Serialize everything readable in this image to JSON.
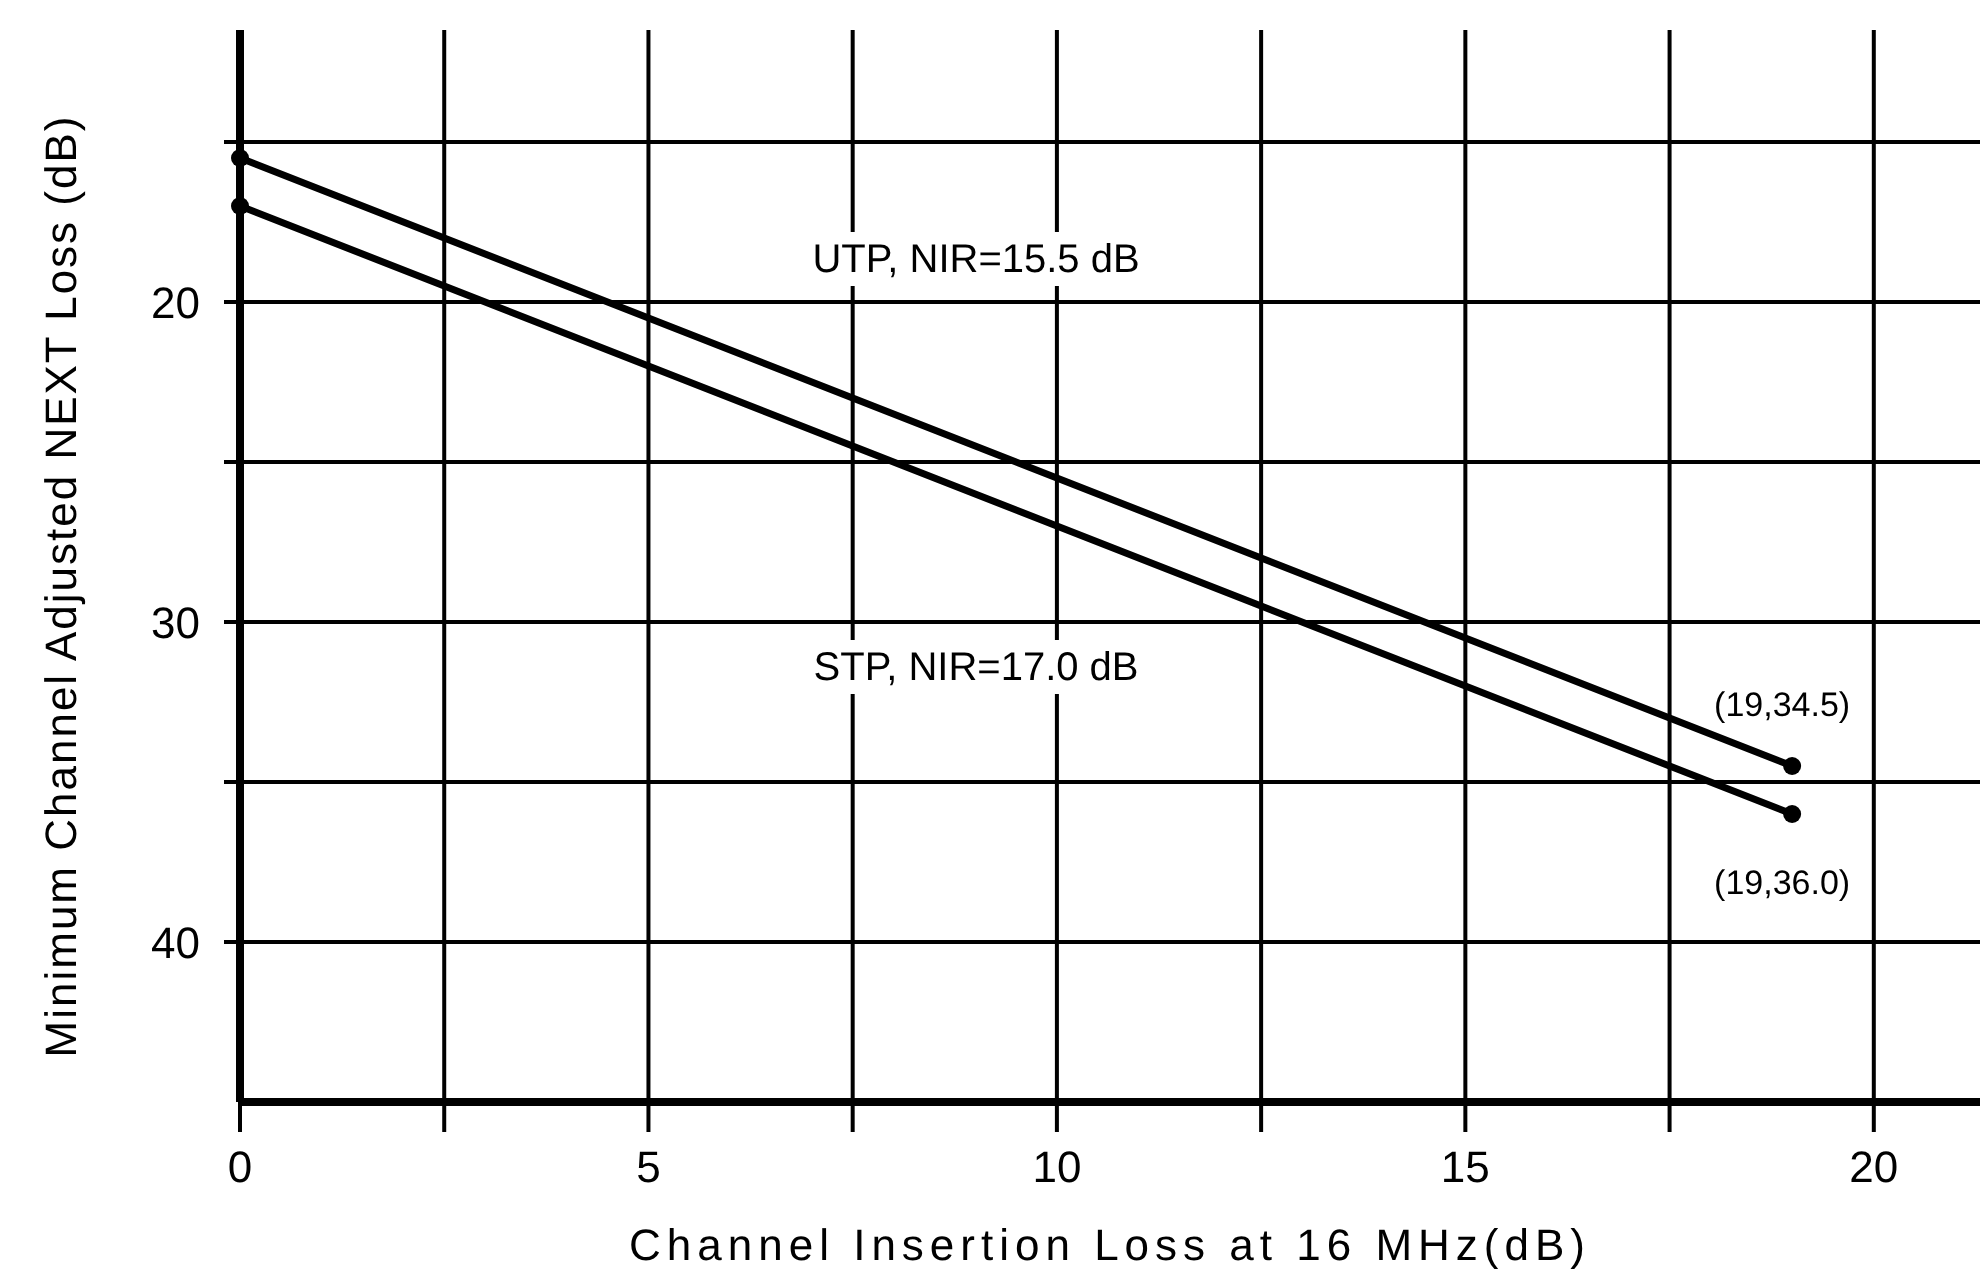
{
  "chart_data": {
    "type": "line",
    "xlabel": "Channel Insertion Loss at 16 MHz(dB)",
    "ylabel": "Minimum Channel Adjusted NEXT Loss (dB)",
    "x": [
      0,
      19
    ],
    "series": [
      {
        "name": "UTP, NIR=15.5 dB",
        "color": "#000000",
        "values": [
          15.5,
          34.5
        ]
      },
      {
        "name": "STP, NIR=17.0 dB",
        "color": "#000000",
        "values": [
          17.0,
          36.0
        ]
      }
    ],
    "annotations": [
      {
        "text": "(19,34.5)",
        "x": 19,
        "y": 34.5
      },
      {
        "text": "(19,36.0)",
        "x": 19,
        "y": 36.0
      }
    ],
    "xlim": [
      0,
      21.3
    ],
    "xticks": [
      0,
      {
        "value": 2.5,
        "label": null
      },
      5,
      {
        "value": 7.5,
        "label": null
      },
      10,
      {
        "value": 12.5,
        "label": null
      },
      15,
      {
        "value": 17.5,
        "label": null
      },
      20
    ],
    "ylim": [
      45,
      11.5
    ],
    "yticks": [
      {
        "value": 15,
        "label": null
      },
      20,
      {
        "value": 25,
        "label": null
      },
      30,
      {
        "value": 35,
        "label": null
      },
      40
    ],
    "grid": true,
    "marker": "circle",
    "line_style": "solid"
  }
}
